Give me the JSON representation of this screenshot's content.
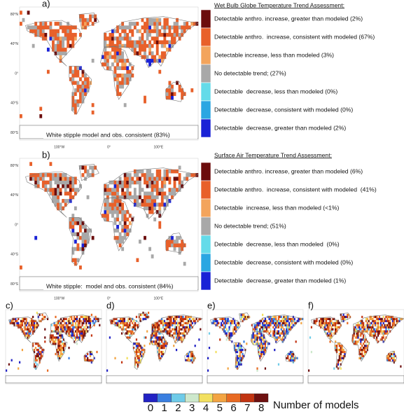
{
  "panels": [
    {
      "label": "a)",
      "legend_title": "Wet Bulb Globe Temperature Trend Assessment:",
      "legend_items": [
        "Detectable anthro. increase, greater than modeled (2%)",
        "Detectable anthro.  increase, consistent with modeled (67%)",
        "Detectable increase, less than modeled (3%)",
        "No detectable trend; (27%)",
        "Detectable  decrease, less than modeled (0%)",
        "Detectable  decrease, consistent with modeled (0%)",
        "Detectable  decrease, greater than modeled (2%)"
      ],
      "note": "White stipple model and obs. consistent (83%)"
    },
    {
      "label": "b)",
      "legend_title": "Surface Air Temperature Trend Assessment:",
      "legend_items": [
        "Detectable anthro. increase, greater than modeled (6%)",
        "Detectable anthro.  increase, consistent with modeled  (41%)",
        "Detectable  increase, less than modeled (<1%)",
        "No detectable trend; (51%)",
        "Detectable  decrease, less than modeled  (0%)",
        "Detectable  decrease, consistent with modeled (0%)",
        "Detectable  decrease, greater than modeled (1%)"
      ],
      "note": "White stipple:  model and obs. consistent (84%)"
    }
  ],
  "lat_labels": [
    "80°N",
    "40°N",
    "0°",
    "40°S",
    "80°S"
  ],
  "lon_labels": [
    "100°W",
    "0°",
    "100°E"
  ],
  "model_panels": [
    "c)",
    "d)",
    "e)",
    "f)"
  ],
  "colorbar": {
    "labels": [
      "0",
      "1",
      "2",
      "3",
      "4",
      "5",
      "6",
      "7",
      "8"
    ],
    "title": "Number of models"
  }
}
